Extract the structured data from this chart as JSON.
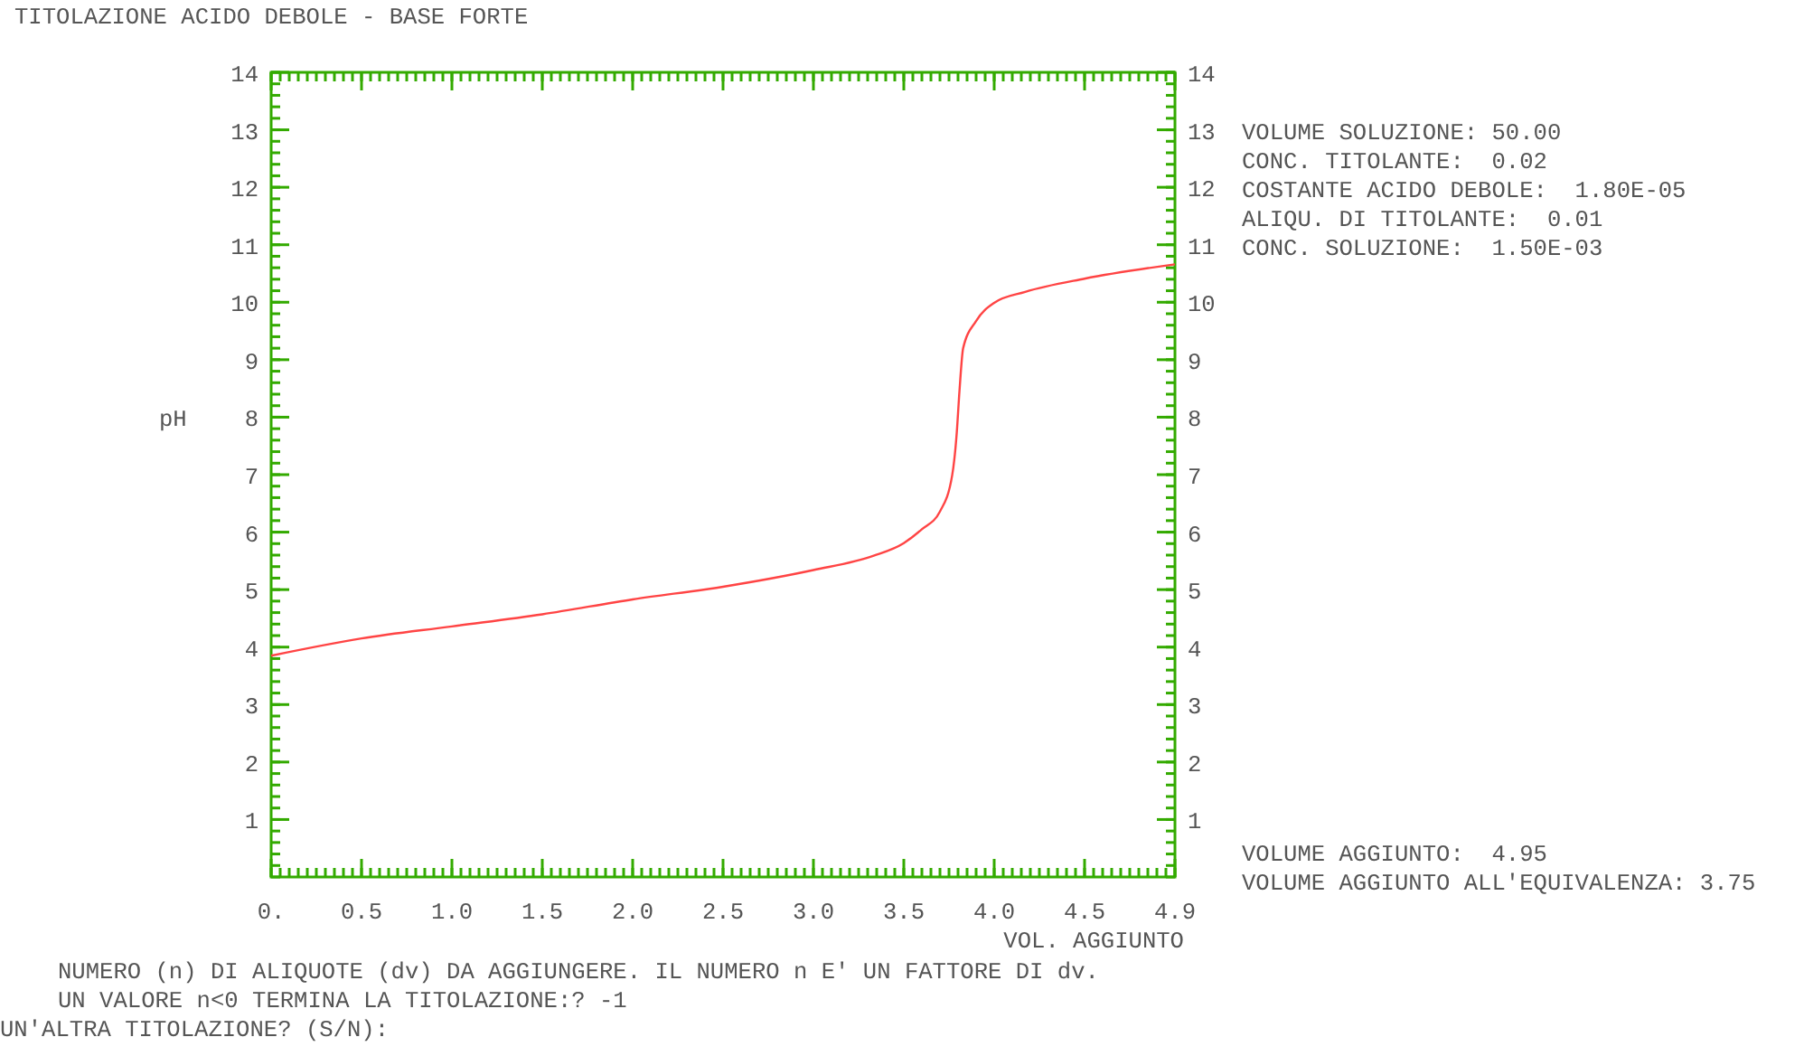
{
  "chart_data": {
    "type": "line",
    "title": "TITOLAZIONE ACIDO DEBOLE - BASE FORTE",
    "xlabel": "VOL. AGGIUNTO",
    "ylabel": "pH",
    "x": [
      0,
      0.495,
      0.99,
      1.485,
      1.98,
      2.475,
      2.97,
      3.3,
      3.465,
      3.564,
      3.663,
      3.73,
      3.755,
      3.77,
      3.79,
      3.86,
      3.96,
      4.13,
      4.455,
      4.95
    ],
    "series": [
      {
        "color": "#ff4444",
        "values": [
          3.85,
          4.15,
          4.36,
          4.57,
          4.83,
          5.05,
          5.34,
          5.59,
          5.81,
          6.05,
          6.36,
          6.99,
          7.73,
          8.46,
          9.2,
          9.67,
          9.99,
          10.18,
          10.41,
          10.66
        ]
      }
    ],
    "xlim": [
      0,
      4.95
    ],
    "xticks": [
      {
        "value": 0,
        "label": "0."
      },
      {
        "value": 0.495,
        "label": "0.5"
      },
      {
        "value": 0.99,
        "label": "1.0"
      },
      {
        "value": 1.485,
        "label": "1.5"
      },
      {
        "value": 1.98,
        "label": "2.0"
      },
      {
        "value": 2.475,
        "label": "2.5"
      },
      {
        "value": 2.97,
        "label": "3.0"
      },
      {
        "value": 3.465,
        "label": "3.5"
      },
      {
        "value": 3.96,
        "label": "4.0"
      },
      {
        "value": 4.455,
        "label": "4.5"
      },
      {
        "value": 4.95,
        "label": "4.9"
      }
    ],
    "ylim": [
      0,
      14
    ],
    "yticks": [
      1,
      2,
      3,
      4,
      5,
      6,
      7,
      8,
      9,
      10,
      11,
      12,
      13,
      14
    ],
    "y2lim": [
      0,
      14
    ],
    "y2ticks": [
      1,
      2,
      3,
      4,
      5,
      6,
      7,
      8,
      9,
      10,
      11,
      12,
      13,
      14
    ],
    "grid": false,
    "marker": "none",
    "line_style": "solid",
    "annotations": [
      "VOLUME SOLUZIONE: 50.00",
      "CONC. TITOLANTE:  0.02",
      "COSTANTE ACIDO DEBOLE:  1.80E-05",
      "ALIQU. DI TITOLANTE:  0.01",
      "CONC. SOLUZIONE:  1.50E-03",
      "VOLUME AGGIUNTO:  4.95",
      "VOLUME AGGIUNTO ALL'EQUIVALENZA: 3.75",
      "NUMERO (n) DI ALIQUOTE (dv) DA AGGIUNGERE. IL NUMERO n E' UN FATTORE DI dv.",
      "UN VALORE n<0 TERMINA LA TITOLAZIONE:? -1",
      "UN'ALTRA TITOLAZIONE? (S/N):"
    ]
  }
}
